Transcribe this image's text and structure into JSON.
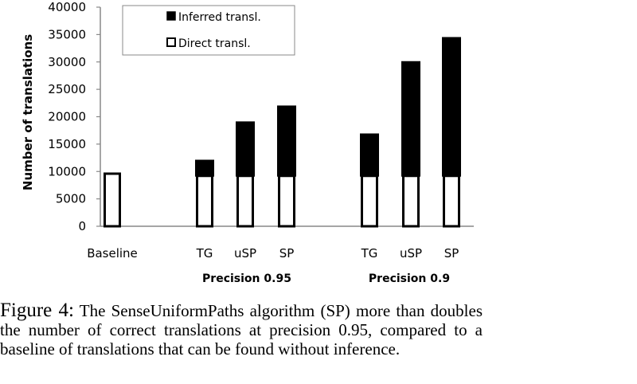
{
  "chart_data": {
    "type": "bar",
    "stacked": true,
    "categories": [
      "Baseline",
      "TG",
      "uSP",
      "SP",
      "TG",
      "uSP",
      "SP"
    ],
    "groups": [
      {
        "label": "",
        "categories": [
          "Baseline"
        ]
      },
      {
        "label": "Precision 0.95",
        "categories": [
          "TG",
          "uSP",
          "SP"
        ]
      },
      {
        "label": "Precision 0.9",
        "categories": [
          "TG",
          "uSP",
          "SP"
        ]
      }
    ],
    "series": [
      {
        "name": "Direct transl.",
        "color": "#ffffff",
        "values": [
          9600,
          9200,
          9200,
          9200,
          9200,
          9200,
          9200
        ]
      },
      {
        "name": "Inferred transl.",
        "color": "#000000",
        "values": [
          0,
          2800,
          9800,
          12700,
          7600,
          20800,
          25200
        ]
      }
    ],
    "ylabel": "Number of translations",
    "ylim": [
      0,
      40000
    ],
    "yticks": [
      "0",
      "5000",
      "10000",
      "15000",
      "20000",
      "25000",
      "30000",
      "35000",
      "40000"
    ],
    "grid": false,
    "legend_position": "top-left"
  },
  "caption": {
    "figure_label": "Figure 4:",
    "text": "The SenseUniformPaths algorithm (SP) more than doubles the number of correct translations at precision 0.95, compared to a baseline of translations that can be found without inference."
  }
}
